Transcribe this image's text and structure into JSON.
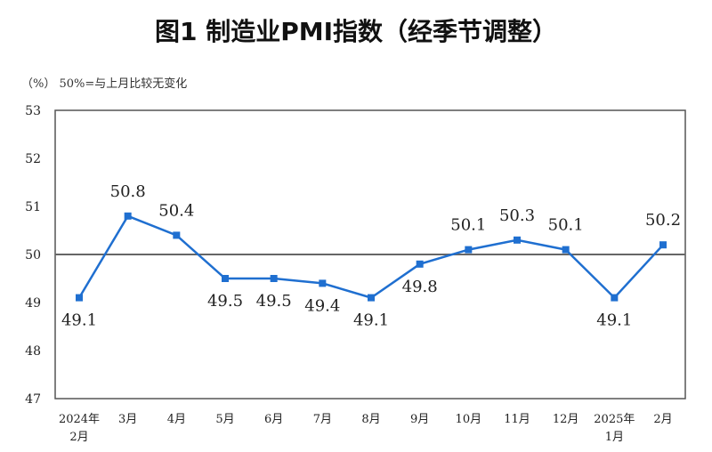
{
  "chart_data": {
    "type": "line",
    "title": "图1  制造业PMI指数（经季节调整）",
    "note": "（%） 50%=与上月比较无变化",
    "categories": [
      "2024年\n2月",
      "3月",
      "4月",
      "5月",
      "6月",
      "7月",
      "8月",
      "9月",
      "10月",
      "11月",
      "12月",
      "2025年\n1月",
      "2月"
    ],
    "values": [
      49.1,
      50.8,
      50.4,
      49.5,
      49.5,
      49.4,
      49.1,
      49.8,
      50.1,
      50.3,
      50.1,
      49.1,
      50.2
    ],
    "label_positions": [
      "below",
      "above",
      "above",
      "below",
      "below",
      "below",
      "below",
      "below",
      "above",
      "above",
      "above",
      "below",
      "above"
    ],
    "ylim": [
      47,
      53
    ],
    "yticks": [
      47,
      48,
      49,
      50,
      51,
      52,
      53
    ],
    "reference_line": 50,
    "grid": false,
    "line_color": "#1f6fd0",
    "marker": "square"
  }
}
